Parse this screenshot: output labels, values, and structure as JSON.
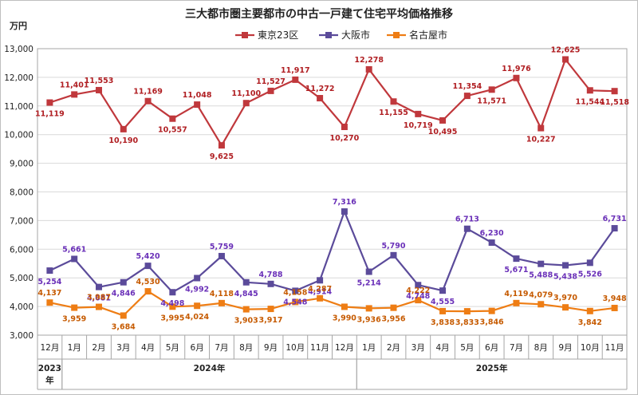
{
  "chart_data": {
    "type": "line",
    "title": "三大都市圏主要都市の中古一戸建て住宅平均価格推移",
    "ylabel": "万円",
    "ylim": [
      3000,
      13000
    ],
    "yticks": [
      3000,
      4000,
      5000,
      6000,
      7000,
      8000,
      9000,
      10000,
      11000,
      12000,
      13000
    ],
    "ytick_labels": [
      "3,000",
      "4,000",
      "5,000",
      "6,000",
      "7,000",
      "8,000",
      "9,000",
      "10,000",
      "11,000",
      "12,000",
      "13,000"
    ],
    "grid": true,
    "legend_position": "top",
    "categories": [
      "12月",
      "1月",
      "2月",
      "3月",
      "4月",
      "5月",
      "6月",
      "7月",
      "8月",
      "9月",
      "10月",
      "11月",
      "12月",
      "1月",
      "2月",
      "3月",
      "4月",
      "5月",
      "6月",
      "7月",
      "8月",
      "9月",
      "10月",
      "11月"
    ],
    "year_groups": [
      {
        "label": "2023年",
        "start": 0,
        "end": 0
      },
      {
        "label": "2024年",
        "start": 1,
        "end": 12
      },
      {
        "label": "2025年",
        "start": 13,
        "end": 23
      }
    ],
    "series": [
      {
        "name": "東京23区",
        "color": "#c0383c",
        "label_color": "#b01e22",
        "values": [
          11119,
          11401,
          11553,
          10190,
          11169,
          10557,
          11048,
          9625,
          11100,
          11527,
          11917,
          11272,
          10270,
          12278,
          11155,
          10719,
          10495,
          11354,
          11571,
          11976,
          10227,
          12625,
          11544,
          11518
        ],
        "labels": [
          "11,119",
          "11,401",
          "11,553",
          "10,190",
          "11,169",
          "10,557",
          "11,048",
          "9,625",
          "11,100",
          "11,527",
          "11,917",
          "11,272",
          "10,270",
          "12,278",
          "11,155",
          "10,719",
          "10,495",
          "11,354",
          "11,571",
          "11,976",
          "10,227",
          "12,625",
          "11,544",
          "11,518"
        ]
      },
      {
        "name": "大阪市",
        "color": "#5b4b9a",
        "label_color": "#6a30b8",
        "values": [
          5254,
          5661,
          4681,
          4846,
          5420,
          4498,
          4992,
          5759,
          4845,
          4788,
          4548,
          4914,
          7316,
          5214,
          5790,
          4748,
          4555,
          6713,
          6230,
          5671,
          5488,
          5438,
          5526,
          6731
        ],
        "labels": [
          "5,254",
          "5,661",
          "4,681",
          "4,846",
          "5,420",
          "4,498",
          "4,992",
          "5,759",
          "4,845",
          "4,788",
          "4,548",
          "4,914",
          "7,316",
          "5,214",
          "5,790",
          "4,748",
          "4,555",
          "6,713",
          "6,230",
          "5,671",
          "5,488",
          "5,438",
          "5,526",
          "6,731"
        ]
      },
      {
        "name": "名古屋市",
        "color": "#ee7d14",
        "label_color": "#c65a00",
        "values": [
          4137,
          3959,
          3987,
          3684,
          4530,
          3995,
          4024,
          4118,
          3903,
          3917,
          4158,
          4287,
          3990,
          3936,
          3956,
          4222,
          3838,
          3833,
          3846,
          4119,
          4079,
          3970,
          3842,
          3948
        ],
        "labels": [
          "4,137",
          "3,959",
          "3,987",
          "3,684",
          "4,530",
          "3,995",
          "4,024",
          "4,118",
          "3,903",
          "3,917",
          "4,158",
          "4,287",
          "3,990",
          "3,936",
          "3,956",
          "4,222",
          "3,838",
          "3,833",
          "3,846",
          "4,119",
          "4,079",
          "3,970",
          "3,842",
          "3,948"
        ]
      }
    ]
  }
}
